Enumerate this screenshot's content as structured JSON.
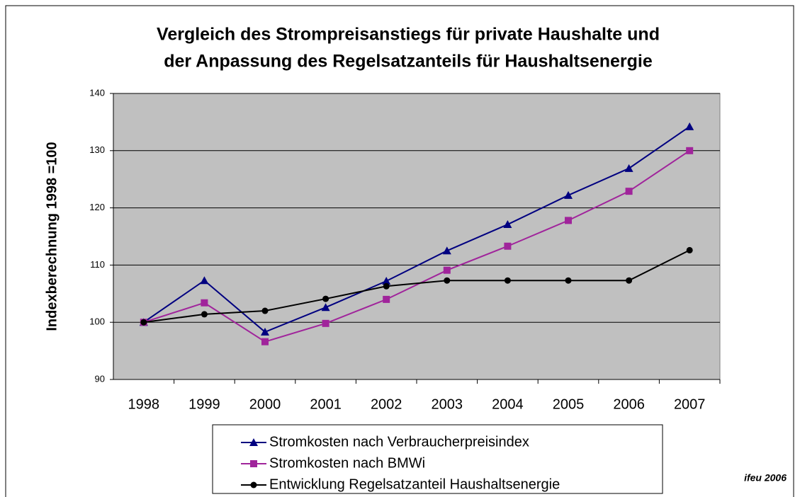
{
  "chart_data": {
    "type": "line",
    "title": [
      "Vergleich des Strompreisanstiegs für private Haushalte und",
      "der Anpassung des Regelsatzanteils für Haushaltsenergie"
    ],
    "y_label": "Indexberechnung 1998 =100",
    "annotation": "ifeu 2006",
    "categories": [
      "1998",
      "1999",
      "2000",
      "2001",
      "2002",
      "2003",
      "2004",
      "2005",
      "2006",
      "2007"
    ],
    "series": [
      {
        "name": "Stromkosten nach Verbraucherpreisindex",
        "color": "#000080",
        "marker": "triangle",
        "values": [
          100,
          107.3,
          98.3,
          102.6,
          107.2,
          112.5,
          117.1,
          122.2,
          126.9,
          134.2
        ]
      },
      {
        "name": "Stromkosten nach BMWi",
        "color": "#a0249b",
        "marker": "square",
        "values": [
          100,
          103.4,
          96.6,
          99.8,
          104.0,
          109.1,
          113.3,
          117.8,
          122.9,
          130.0
        ]
      },
      {
        "name": "Entwicklung Regelsatzanteil Haushaltsenergie",
        "color": "#000000",
        "marker": "circle",
        "values": [
          100,
          101.4,
          102.0,
          104.1,
          106.3,
          107.3,
          107.3,
          107.3,
          107.3,
          112.6
        ]
      }
    ],
    "ylim": [
      90,
      140
    ],
    "yticks": [
      90,
      100,
      110,
      120,
      130,
      140
    ],
    "grid": true,
    "plot_background": "#c0c0c0",
    "legend": "bottom"
  }
}
